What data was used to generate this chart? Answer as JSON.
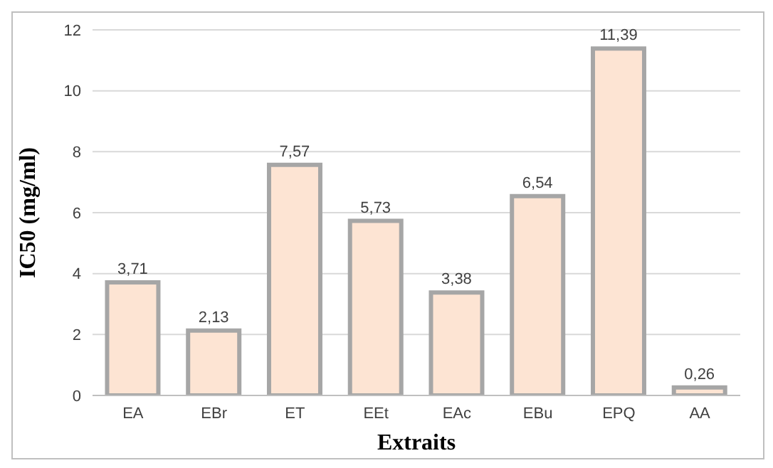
{
  "chart_data": {
    "type": "bar",
    "xlabel": "Extraits",
    "ylabel": "IC50 (mg/ml)",
    "categories": [
      "EA",
      "EBr",
      "ET",
      "EEt",
      "EAc",
      "EBu",
      "EPQ",
      "AA"
    ],
    "values": [
      3.71,
      2.13,
      7.57,
      5.73,
      3.38,
      6.54,
      11.39,
      0.26
    ],
    "value_labels": [
      "3,71",
      "2,13",
      "7,57",
      "5,73",
      "3,38",
      "6,54",
      "11,39",
      "0,26"
    ],
    "color": "#fde4d3",
    "ylim": [
      0,
      12
    ],
    "yticks": [
      0,
      2,
      4,
      6,
      8,
      10,
      12
    ],
    "grid": "y"
  }
}
